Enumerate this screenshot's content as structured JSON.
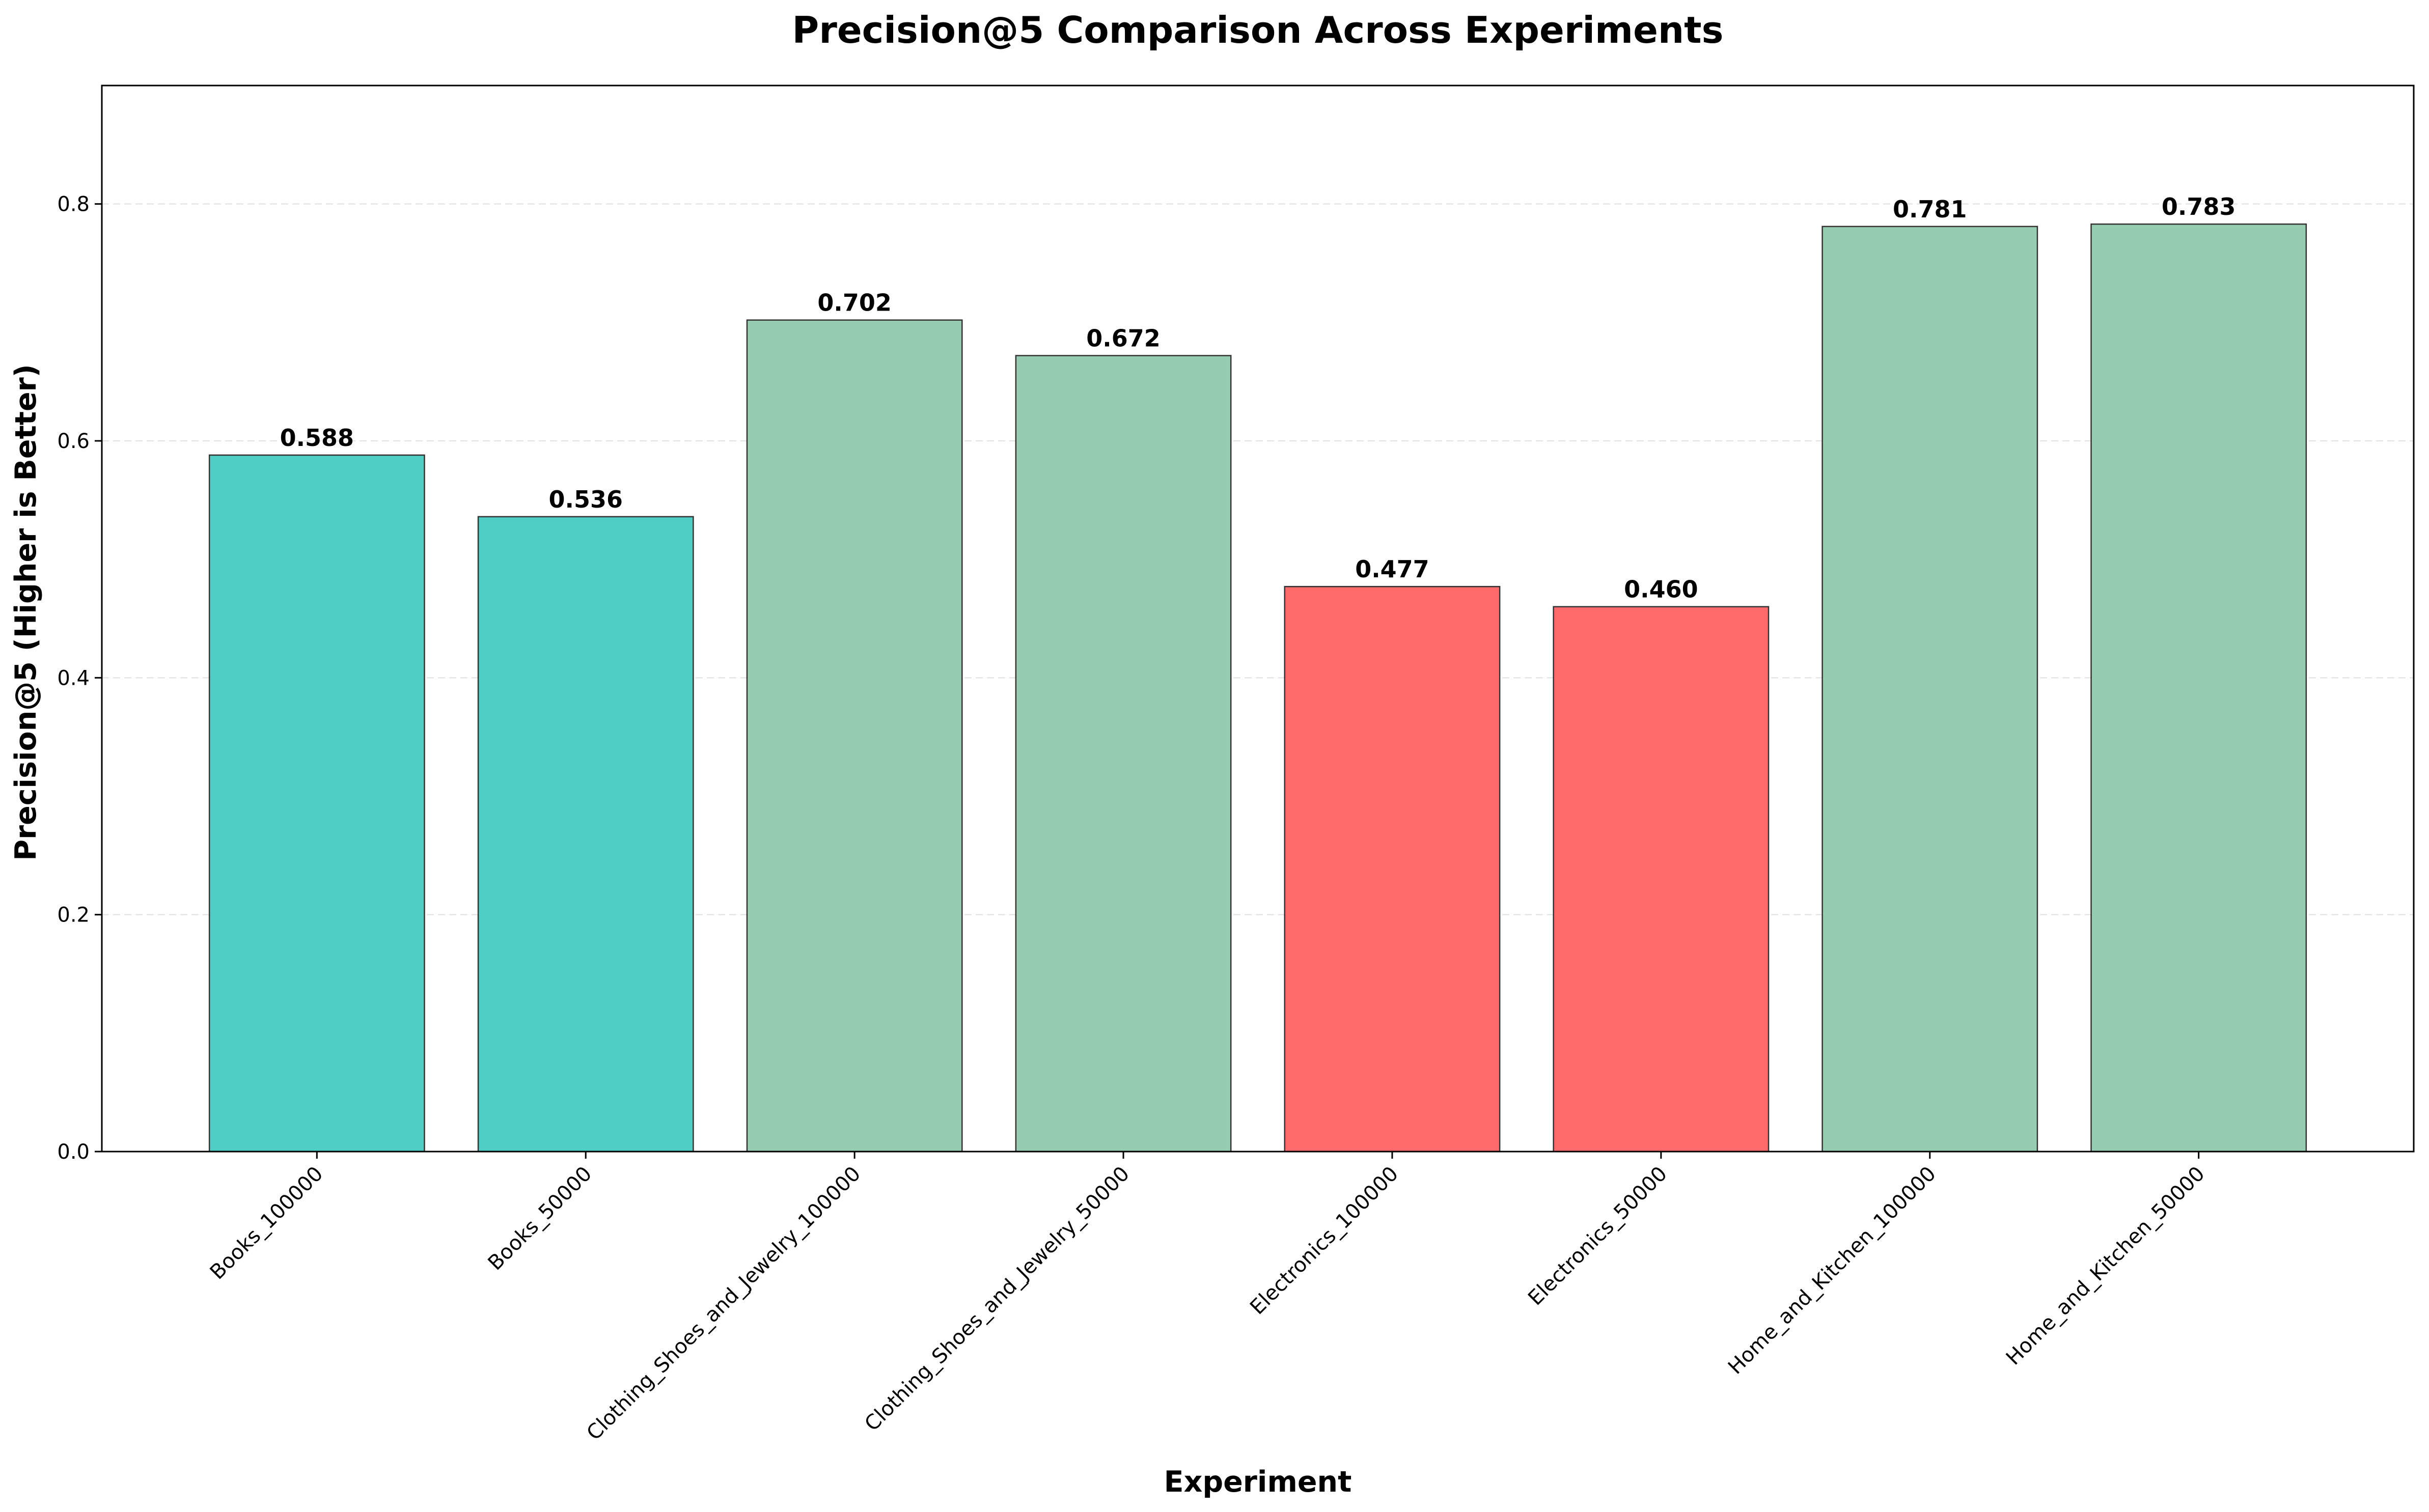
{
  "chart_data": {
    "type": "bar",
    "title": "Precision@5 Comparison Across Experiments",
    "xlabel": "Experiment",
    "ylabel": "Precision@5 (Higher is Better)",
    "categories": [
      "Books_100000",
      "Books_50000",
      "Clothing_Shoes_and_Jewelry_100000",
      "Clothing_Shoes_and_Jewelry_50000",
      "Electronics_100000",
      "Electronics_50000",
      "Home_and_Kitchen_100000",
      "Home_and_Kitchen_50000"
    ],
    "values": [
      0.588,
      0.536,
      0.702,
      0.672,
      0.477,
      0.46,
      0.781,
      0.783
    ],
    "value_labels": [
      "0.588",
      "0.536",
      "0.702",
      "0.672",
      "0.477",
      "0.460",
      "0.781",
      "0.783"
    ],
    "bar_colors": [
      "#4ecdc4",
      "#4ecdc4",
      "#96cdb0",
      "#96cdb0",
      "#ff6b6b",
      "#ff6b6b",
      "#96cdb0",
      "#96cdb0"
    ],
    "ylim": [
      0,
      0.9
    ],
    "yticks": [
      0.0,
      0.2,
      0.4,
      0.6,
      0.8
    ],
    "ytick_labels": [
      "0.0",
      "0.2",
      "0.4",
      "0.6",
      "0.8"
    ],
    "grid": "y dashed",
    "legend": "none"
  }
}
